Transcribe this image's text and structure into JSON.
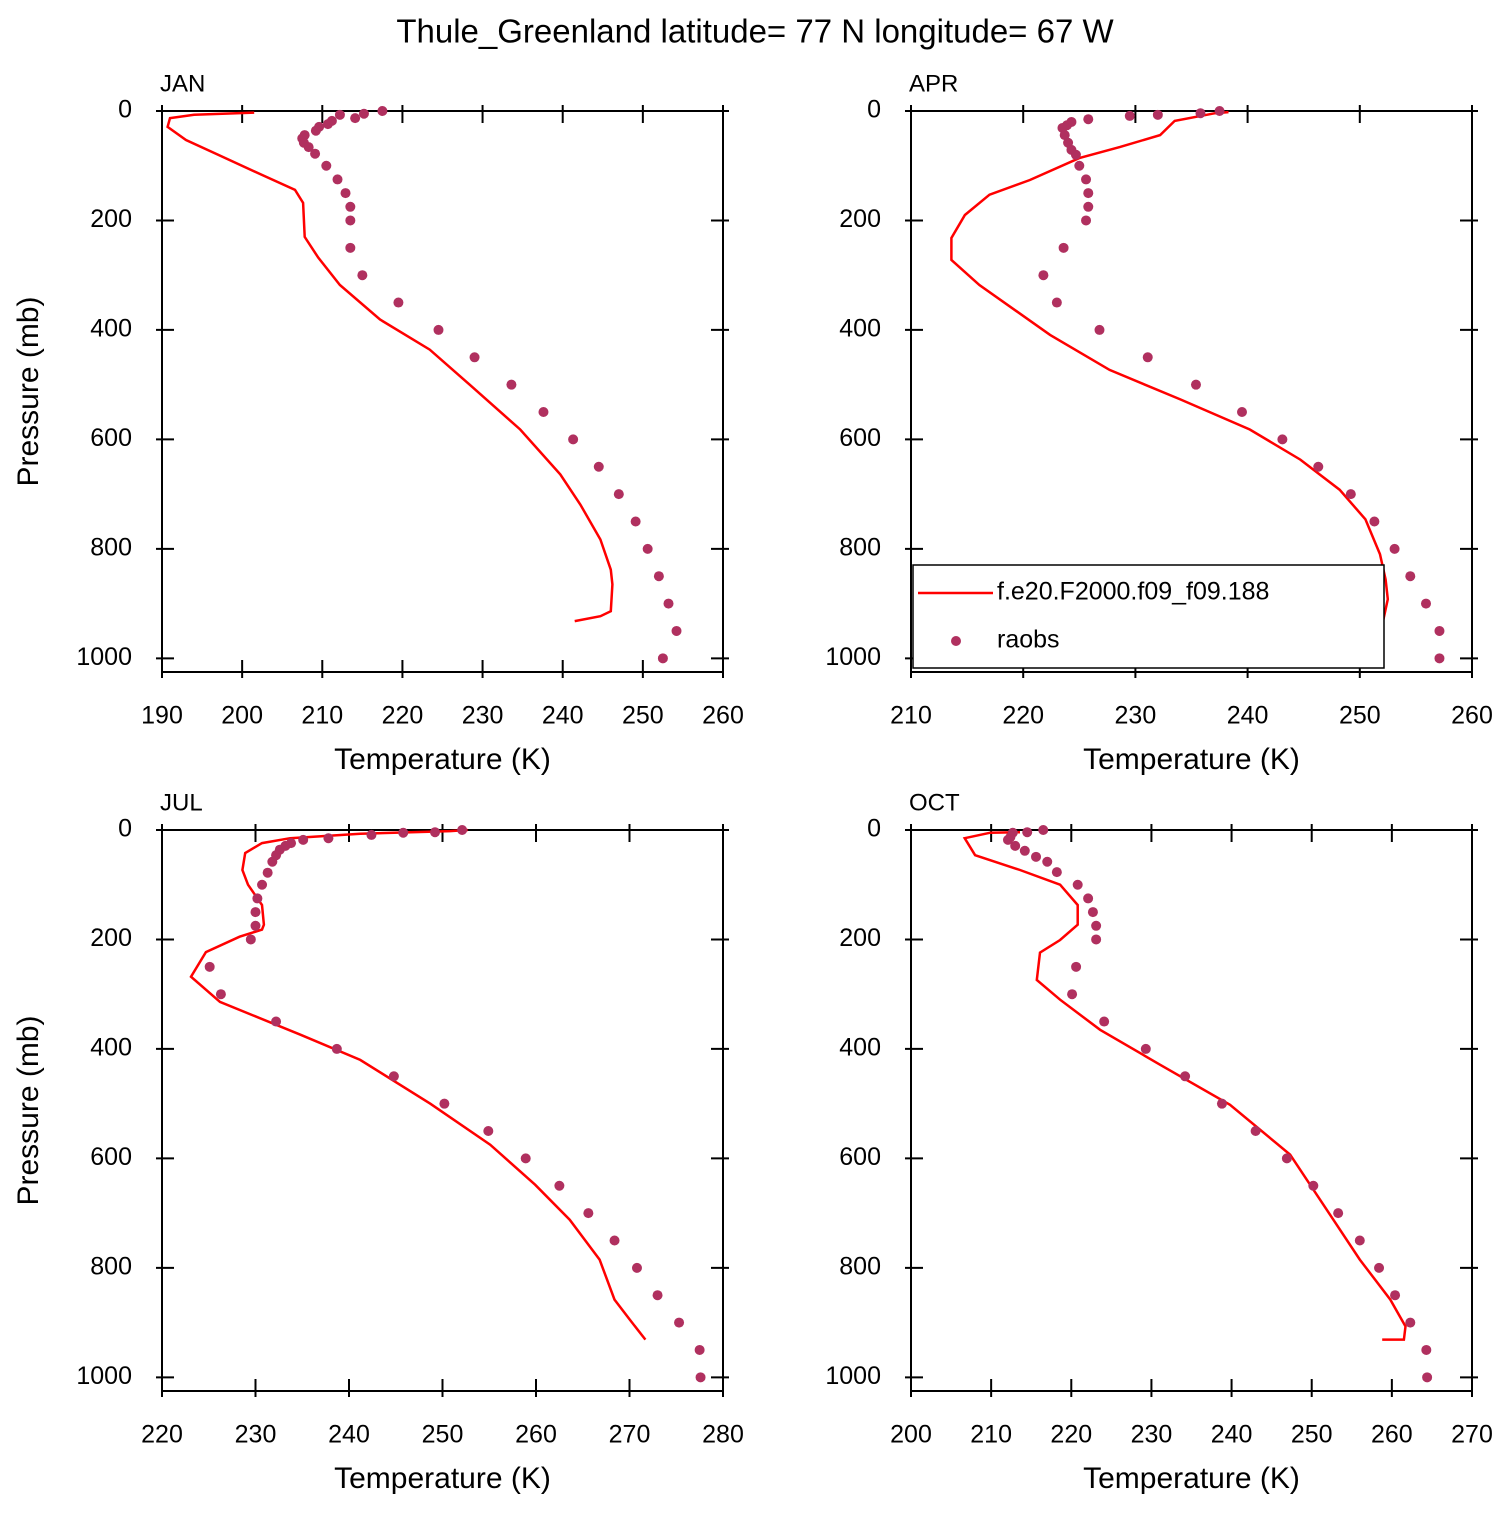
{
  "title": "Thule_Greenland  latitude= 77 N longitude= 67 W",
  "chart_data": [
    {
      "type": "line",
      "title": "JAN",
      "xlabel": "Temperature (K)",
      "ylabel": "Pressure (mb)",
      "xlim": [
        190,
        260
      ],
      "ylim": [
        1025,
        0
      ],
      "xticks": [
        190,
        200,
        210,
        220,
        230,
        240,
        250,
        260
      ],
      "yticks": [
        0,
        200,
        400,
        600,
        800,
        1000
      ],
      "series": [
        {
          "mark": "line",
          "color": "#ff0000",
          "x": [
            201.5,
            194,
            191,
            190.7,
            193,
            197,
            202.5,
            206.6,
            207.6,
            207.8,
            209.5,
            212.2,
            217.2,
            223.4,
            228.4,
            234.7,
            239.7,
            242.2,
            244.7,
            246,
            246.2,
            246,
            244.7,
            241.5
          ],
          "y": [
            3,
            7,
            13,
            29,
            53,
            80,
            117,
            144,
            168,
            230,
            268,
            318,
            381,
            436,
            500,
            582,
            664,
            719,
            783,
            838,
            865,
            914,
            923,
            932
          ]
        },
        {
          "mark": "marker",
          "color": "#b0305f",
          "x": [
            217.5,
            215.2,
            212.2,
            214.1,
            211.2,
            210.7,
            209.6,
            209.2,
            207.8,
            207.5,
            207.7,
            208.3,
            209.1,
            210.5,
            211.9,
            212.9,
            213.5,
            213.5,
            213.5,
            215,
            219.5,
            224.5,
            229,
            233.6,
            237.6,
            241.3,
            244.5,
            247,
            249.1,
            250.6,
            252,
            253.2,
            254.2,
            252.5
          ],
          "y": [
            0,
            5,
            7,
            13,
            18,
            24,
            29,
            36,
            44,
            50,
            58,
            66,
            78,
            100,
            125,
            150,
            175,
            200,
            250,
            300,
            350,
            400,
            450,
            500,
            550,
            600,
            650,
            700,
            750,
            800,
            850,
            900,
            950,
            1000
          ]
        }
      ]
    },
    {
      "type": "line",
      "title": "APR",
      "xlabel": "Temperature (K)",
      "xlim": [
        210,
        260
      ],
      "ylim": [
        1025,
        0
      ],
      "xticks": [
        210,
        220,
        230,
        240,
        250,
        260
      ],
      "yticks": [
        0,
        200,
        400,
        600,
        800,
        1000
      ],
      "legend": "lower left",
      "series": [
        {
          "name": "f.e20.F2000.f09_f09.188",
          "mark": "line",
          "color": "#ff0000",
          "x": [
            238.3,
            237.1,
            233.5,
            232.2,
            228.6,
            225,
            220.6,
            217,
            214.8,
            213.6,
            213.6,
            216.1,
            222.4,
            227.7,
            234,
            240.2,
            244.7,
            248.2,
            250.5,
            251.8,
            252.3,
            252.5,
            252.1
          ],
          "y": [
            2,
            4,
            18,
            44,
            66,
            86,
            126,
            153,
            190,
            232,
            272,
            318,
            409,
            473,
            527,
            582,
            637,
            692,
            746,
            810,
            856,
            892,
            929
          ]
        },
        {
          "name": "raobs",
          "mark": "marker",
          "color": "#b0305f",
          "x": [
            237.5,
            235.8,
            232,
            229.5,
            225.8,
            224.3,
            223.9,
            223.5,
            223.7,
            224,
            224.3,
            224.7,
            225,
            225.6,
            225.8,
            225.8,
            225.6,
            223.6,
            221.8,
            223,
            226.8,
            231.1,
            235.4,
            239.5,
            243.1,
            246.3,
            249.2,
            251.3,
            253.1,
            254.5,
            255.9,
            257.1,
            257.1
          ],
          "y": [
            0,
            4,
            7,
            9,
            15,
            20,
            26,
            31,
            44,
            58,
            71,
            80,
            100,
            125,
            150,
            175,
            200,
            250,
            300,
            350,
            400,
            450,
            500,
            550,
            600,
            650,
            700,
            750,
            800,
            850,
            900,
            950,
            1000
          ]
        }
      ]
    },
    {
      "type": "line",
      "title": "JUL",
      "xlabel": "Temperature (K)",
      "ylabel": "Pressure (mb)",
      "xlim": [
        220,
        280
      ],
      "ylim": [
        1025,
        0
      ],
      "xticks": [
        220,
        230,
        240,
        250,
        260,
        270,
        280
      ],
      "yticks": [
        0,
        200,
        400,
        600,
        800,
        1000
      ],
      "series": [
        {
          "mark": "line",
          "color": "#ff0000",
          "x": [
            252.7,
            250.8,
            241.2,
            233.7,
            230.7,
            228.9,
            228.6,
            229.2,
            230.7,
            230.9,
            230.7,
            228.3,
            224.7,
            223.1,
            226.2,
            234.8,
            241.2,
            248.7,
            255.1,
            259.9,
            263.6,
            266.8,
            268.4,
            270,
            271.7
          ],
          "y": [
            0,
            2,
            7,
            15,
            24,
            42,
            73,
            100,
            137,
            173,
            182,
            195,
            223,
            268,
            314,
            374,
            420,
            500,
            575,
            648,
            712,
            785,
            858,
            894,
            931
          ]
        },
        {
          "mark": "marker",
          "color": "#b0305f",
          "x": [
            252.1,
            249.2,
            245.8,
            242.4,
            237.8,
            235.1,
            233.8,
            233.2,
            232.6,
            232.2,
            231.8,
            231.3,
            230.7,
            230.2,
            230,
            230,
            229.5,
            225.1,
            226.3,
            232.2,
            238.7,
            244.8,
            250.2,
            254.9,
            258.9,
            262.5,
            265.6,
            268.4,
            270.8,
            273,
            275.3,
            277.5,
            277.6
          ],
          "y": [
            0,
            4,
            5,
            9,
            15,
            18,
            24,
            29,
            36,
            46,
            58,
            78,
            100,
            125,
            150,
            175,
            200,
            250,
            300,
            350,
            400,
            450,
            500,
            550,
            600,
            650,
            700,
            750,
            800,
            850,
            900,
            950,
            1000
          ]
        }
      ]
    },
    {
      "type": "line",
      "title": "OCT",
      "xlabel": "Temperature (K)",
      "xlim": [
        200,
        270
      ],
      "ylim": [
        1025,
        0
      ],
      "xticks": [
        200,
        210,
        220,
        230,
        240,
        250,
        260,
        270
      ],
      "yticks": [
        0,
        200,
        400,
        600,
        800,
        1000
      ],
      "series": [
        {
          "mark": "line",
          "color": "#ff0000",
          "x": [
            213.6,
            209.9,
            206.7,
            208,
            213.6,
            218.6,
            220.8,
            220.8,
            218.6,
            216.1,
            215.7,
            218.6,
            223.6,
            231.1,
            239.8,
            247.3,
            252.3,
            256,
            259.8,
            261.7,
            261.5,
            258.8
          ],
          "y": [
            4,
            5,
            15,
            46,
            73,
            100,
            137,
            173,
            201,
            224,
            274,
            310,
            365,
            429,
            502,
            593,
            703,
            785,
            858,
            907,
            931,
            931
          ]
        },
        {
          "mark": "marker",
          "color": "#b0305f",
          "x": [
            216.5,
            214.5,
            212.7,
            212.4,
            212.1,
            213,
            214.2,
            215.6,
            217,
            218.2,
            220.8,
            222.1,
            222.7,
            223.1,
            223.1,
            220.6,
            220.1,
            224.1,
            229.3,
            234.2,
            238.8,
            243,
            246.9,
            250.2,
            253.3,
            256,
            258.4,
            260.4,
            262.3,
            264.3,
            264.4
          ],
          "y": [
            0,
            4,
            5,
            13,
            18,
            29,
            38,
            49,
            58,
            77,
            100,
            125,
            150,
            175,
            200,
            250,
            300,
            350,
            400,
            450,
            500,
            550,
            600,
            650,
            700,
            750,
            800,
            850,
            900,
            950,
            1000
          ]
        }
      ]
    }
  ]
}
